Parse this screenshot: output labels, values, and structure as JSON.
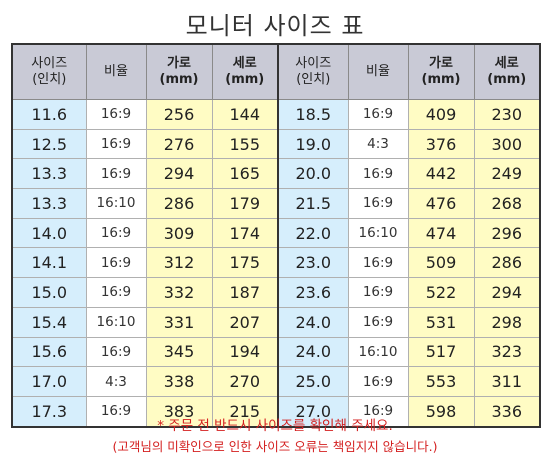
{
  "title": "모니터 사이즈 표",
  "headers": {
    "size": [
      "사이즈",
      "(인치)"
    ],
    "ratio": "비율",
    "width": [
      "가로",
      "(mm)"
    ],
    "height": [
      "세로",
      "(mm)"
    ]
  },
  "left": [
    {
      "size": "11.6",
      "ratio": "16:9",
      "w": "256",
      "h": "144"
    },
    {
      "size": "12.5",
      "ratio": "16:9",
      "w": "276",
      "h": "155"
    },
    {
      "size": "13.3",
      "ratio": "16:9",
      "w": "294",
      "h": "165"
    },
    {
      "size": "13.3",
      "ratio": "16:10",
      "w": "286",
      "h": "179"
    },
    {
      "size": "14.0",
      "ratio": "16:9",
      "w": "309",
      "h": "174"
    },
    {
      "size": "14.1",
      "ratio": "16:9",
      "w": "312",
      "h": "175"
    },
    {
      "size": "15.0",
      "ratio": "16:9",
      "w": "332",
      "h": "187"
    },
    {
      "size": "15.4",
      "ratio": "16:10",
      "w": "331",
      "h": "207"
    },
    {
      "size": "15.6",
      "ratio": "16:9",
      "w": "345",
      "h": "194"
    },
    {
      "size": "17.0",
      "ratio": "4:3",
      "w": "338",
      "h": "270"
    },
    {
      "size": "17.3",
      "ratio": "16:9",
      "w": "383",
      "h": "215"
    }
  ],
  "right": [
    {
      "size": "18.5",
      "ratio": "16:9",
      "w": "409",
      "h": "230"
    },
    {
      "size": "19.0",
      "ratio": "4:3",
      "w": "376",
      "h": "300"
    },
    {
      "size": "20.0",
      "ratio": "16:9",
      "w": "442",
      "h": "249"
    },
    {
      "size": "21.5",
      "ratio": "16:9",
      "w": "476",
      "h": "268"
    },
    {
      "size": "22.0",
      "ratio": "16:10",
      "w": "474",
      "h": "296"
    },
    {
      "size": "23.0",
      "ratio": "16:9",
      "w": "509",
      "h": "286"
    },
    {
      "size": "23.6",
      "ratio": "16:9",
      "w": "522",
      "h": "294"
    },
    {
      "size": "24.0",
      "ratio": "16:9",
      "w": "531",
      "h": "298"
    },
    {
      "size": "24.0",
      "ratio": "16:10",
      "w": "517",
      "h": "323"
    },
    {
      "size": "25.0",
      "ratio": "16:9",
      "w": "553",
      "h": "311"
    },
    {
      "size": "27.0",
      "ratio": "16:9",
      "w": "598",
      "h": "336"
    }
  ],
  "notes": {
    "line1": "* 주문 전 반드시 사이즈를 확인해 주세요.",
    "line2": "(고객님의 미확인으로 인한 사이즈 오류는 책임지지 않습니다.)"
  },
  "colors": {
    "header_bg": "#c9cad6",
    "size_bg": "#d6eefc",
    "dim_bg": "#fffcc4",
    "note": "#d42020"
  }
}
